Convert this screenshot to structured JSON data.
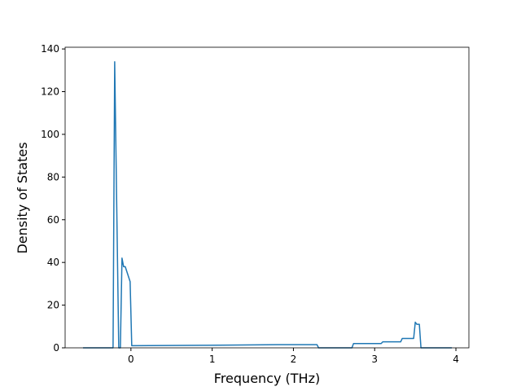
{
  "chart_data": {
    "type": "line",
    "x_label": "Frequency (THz)",
    "y_label": "Density of States",
    "x": [
      -0.59,
      -0.22,
      -0.2,
      -0.15,
      -0.13,
      -0.11,
      -0.09,
      -0.07,
      -0.01,
      0.01,
      0.9,
      1.24,
      1.8,
      2.29,
      2.31,
      2.72,
      2.74,
      3.08,
      3.1,
      3.32,
      3.34,
      3.48,
      3.5,
      3.52,
      3.55,
      3.57,
      3.95
    ],
    "series": [
      {
        "color": "#1f77b4",
        "values": [
          0,
          0,
          134,
          0,
          0,
          42,
          38,
          38,
          31,
          1,
          1.2,
          1.3,
          1.5,
          1.5,
          0,
          0,
          2,
          2,
          2.8,
          2.8,
          4.4,
          4.4,
          12,
          11,
          11,
          0,
          0
        ]
      }
    ],
    "xlim": [
      -0.81,
      4.16
    ],
    "ylim": [
      0,
      140.8
    ],
    "xticks": [
      0,
      1,
      2,
      3,
      4
    ],
    "yticks": [
      0,
      20,
      40,
      60,
      80,
      100,
      120,
      140
    ]
  }
}
